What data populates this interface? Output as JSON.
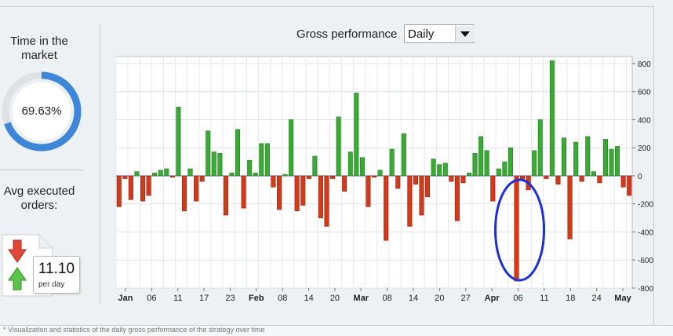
{
  "sidebar": {
    "time_in_market_title": "Time in the market",
    "time_in_market_value": "69.63%",
    "time_in_market_fraction": 0.6963,
    "avg_title": "Avg executed orders:",
    "orders_value": "11.10",
    "orders_unit": "per day"
  },
  "header": {
    "chart_title": "Gross performance",
    "period_select": "Daily"
  },
  "colors": {
    "positive": "#3aa935",
    "negative": "#d23a1c",
    "gauge": "#3d86d8",
    "annotation": "#1a2fd6"
  },
  "icons": [
    "red-down-arrow-icon",
    "green-up-arrow-icon",
    "chevron-down-icon"
  ],
  "chart_data": {
    "type": "bar",
    "title": "Gross performance",
    "ylim": [
      -800,
      850
    ],
    "y_ticks": [
      "800",
      "600",
      "400",
      "200",
      "0",
      "-200",
      "-400",
      "-600",
      "-800"
    ],
    "x_ticks": [
      "Jan",
      "06",
      "11",
      "17",
      "23",
      "Feb",
      "08",
      "14",
      "20",
      "Mar",
      "08",
      "14",
      "20",
      "27",
      "Apr",
      "06",
      "11",
      "18",
      "24",
      "May"
    ],
    "grid": true,
    "values": [
      -220,
      -20,
      -170,
      30,
      -180,
      -140,
      20,
      40,
      50,
      -10,
      490,
      -250,
      50,
      -180,
      -40,
      320,
      170,
      160,
      -280,
      20,
      330,
      -230,
      110,
      20,
      230,
      230,
      -80,
      -240,
      10,
      400,
      -250,
      -210,
      -20,
      140,
      -300,
      -360,
      -20,
      420,
      -110,
      170,
      590,
      130,
      -220,
      -10,
      40,
      -460,
      190,
      -90,
      300,
      -360,
      -60,
      -280,
      -150,
      120,
      80,
      90,
      -40,
      -320,
      -50,
      20,
      160,
      280,
      180,
      -180,
      50,
      100,
      200,
      -750,
      -30,
      -100,
      180,
      400,
      -20,
      820,
      -60,
      270,
      -450,
      240,
      -40,
      280,
      30,
      -50,
      260,
      190,
      210,
      -80,
      -140
    ],
    "annotation": "hand-drawn circle around the largest negative bar"
  },
  "footer": {
    "text": "* Visualization and statistics of the daily gross performance of the strategy over time"
  }
}
